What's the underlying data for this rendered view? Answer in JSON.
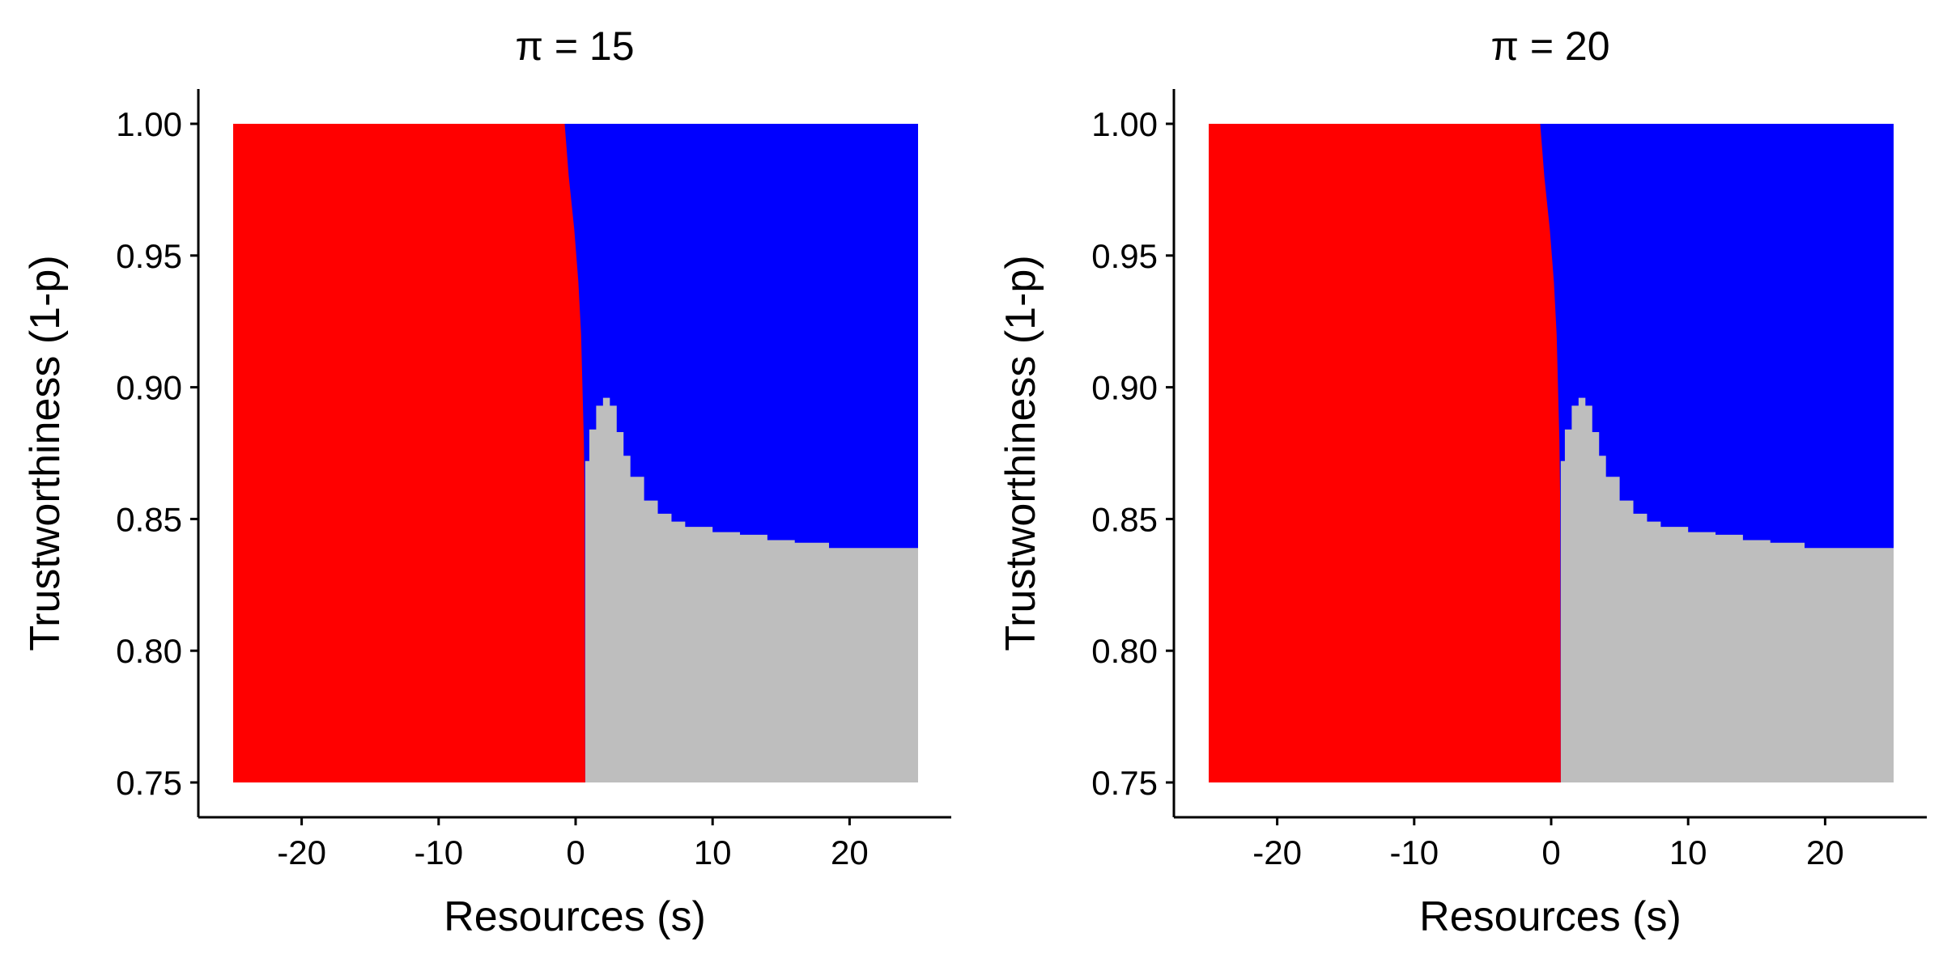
{
  "colors": {
    "red_region": "#ff0000",
    "blue_region": "#0000ff",
    "gray_region": "#bebebe",
    "axis": "#000000",
    "background": "#ffffff"
  },
  "chart_data": [
    {
      "type": "heatmap",
      "title": "π = 15",
      "xlabel": "Resources (s)",
      "ylabel": "Trustworthiness (1-p)",
      "xlim": [
        -25,
        25
      ],
      "ylim": [
        0.75,
        1.0
      ],
      "x_ticks": [
        -20,
        -10,
        0,
        10,
        20
      ],
      "x_tick_labels": [
        "-20",
        "-10",
        "0",
        "10",
        "20"
      ],
      "y_ticks": [
        0.75,
        0.8,
        0.85,
        0.9,
        0.95,
        1.0
      ],
      "y_tick_labels": [
        "0.75",
        "0.80",
        "0.85",
        "0.90",
        "0.95",
        "1.00"
      ],
      "grid": false,
      "legend": "none",
      "regions": [
        "red",
        "blue",
        "gray"
      ],
      "red_boundary": [
        [
          -0.8,
          1.0
        ],
        [
          -0.5,
          0.98
        ],
        [
          -0.1,
          0.96
        ],
        [
          0.2,
          0.94
        ],
        [
          0.4,
          0.92
        ],
        [
          0.5,
          0.9
        ],
        [
          0.6,
          0.88
        ],
        [
          0.65,
          0.86
        ],
        [
          0.7,
          0.75
        ]
      ],
      "gray_boundary": [
        [
          0.7,
          0.872
        ],
        [
          1.0,
          0.884
        ],
        [
          1.5,
          0.893
        ],
        [
          2.0,
          0.896
        ],
        [
          2.5,
          0.893
        ],
        [
          3.0,
          0.883
        ],
        [
          3.5,
          0.874
        ],
        [
          4.0,
          0.866
        ],
        [
          5.0,
          0.857
        ],
        [
          6.0,
          0.852
        ],
        [
          7.0,
          0.849
        ],
        [
          8.0,
          0.847
        ],
        [
          10.0,
          0.845
        ],
        [
          12.0,
          0.844
        ],
        [
          14.0,
          0.842
        ],
        [
          16.0,
          0.841
        ],
        [
          18.5,
          0.839
        ],
        [
          25.0,
          0.838
        ]
      ]
    },
    {
      "type": "heatmap",
      "title": "π = 20",
      "xlabel": "Resources (s)",
      "ylabel": "Trustworthiness (1-p)",
      "xlim": [
        -25,
        25
      ],
      "ylim": [
        0.75,
        1.0
      ],
      "x_ticks": [
        -20,
        -10,
        0,
        10,
        20
      ],
      "x_tick_labels": [
        "-20",
        "-10",
        "0",
        "10",
        "20"
      ],
      "y_ticks": [
        0.75,
        0.8,
        0.85,
        0.9,
        0.95,
        1.0
      ],
      "y_tick_labels": [
        "0.75",
        "0.80",
        "0.85",
        "0.90",
        "0.95",
        "1.00"
      ],
      "grid": false,
      "legend": "none",
      "regions": [
        "red",
        "blue",
        "gray"
      ],
      "red_boundary": [
        [
          -0.8,
          1.0
        ],
        [
          -0.5,
          0.98
        ],
        [
          -0.1,
          0.96
        ],
        [
          0.2,
          0.94
        ],
        [
          0.4,
          0.92
        ],
        [
          0.5,
          0.9
        ],
        [
          0.6,
          0.88
        ],
        [
          0.65,
          0.86
        ],
        [
          0.7,
          0.75
        ]
      ],
      "gray_boundary": [
        [
          0.7,
          0.872
        ],
        [
          1.0,
          0.884
        ],
        [
          1.5,
          0.893
        ],
        [
          2.0,
          0.896
        ],
        [
          2.5,
          0.893
        ],
        [
          3.0,
          0.883
        ],
        [
          3.5,
          0.874
        ],
        [
          4.0,
          0.866
        ],
        [
          5.0,
          0.857
        ],
        [
          6.0,
          0.852
        ],
        [
          7.0,
          0.849
        ],
        [
          8.0,
          0.847
        ],
        [
          10.0,
          0.845
        ],
        [
          12.0,
          0.844
        ],
        [
          14.0,
          0.842
        ],
        [
          16.0,
          0.841
        ],
        [
          18.5,
          0.839
        ],
        [
          25.0,
          0.838
        ]
      ]
    }
  ]
}
